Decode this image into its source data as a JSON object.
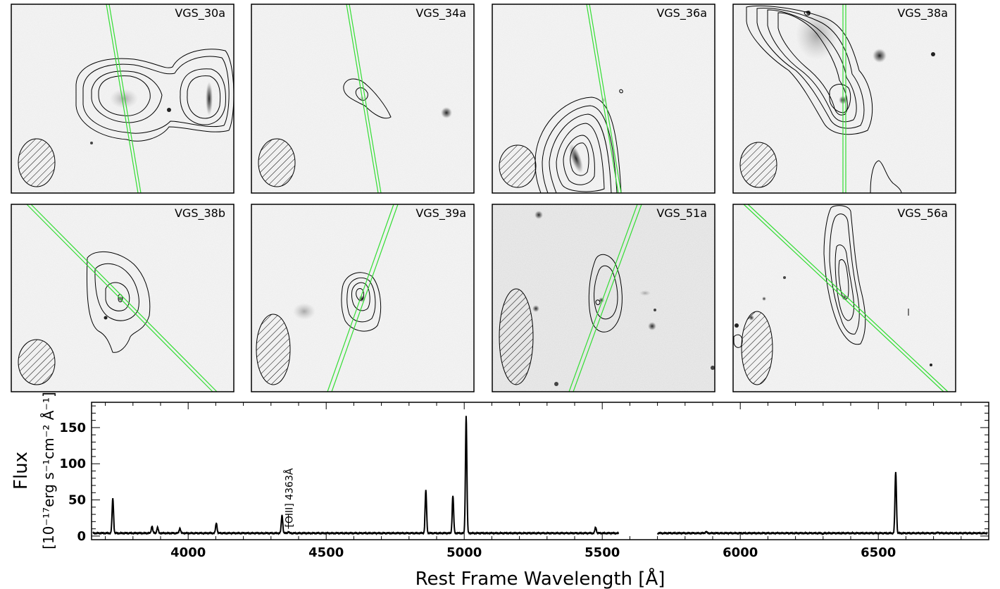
{
  "panels": [
    {
      "label": "VGS_30a"
    },
    {
      "label": "VGS_34a"
    },
    {
      "label": "VGS_36a"
    },
    {
      "label": "VGS_38a"
    },
    {
      "label": "VGS_38b"
    },
    {
      "label": "VGS_39a"
    },
    {
      "label": "VGS_51a"
    },
    {
      "label": "VGS_56a"
    }
  ],
  "colors": {
    "slit": "#33dd33",
    "contour": "#000000",
    "spectrum": "#000000"
  },
  "chart_data": {
    "type": "line",
    "xlabel": "Rest Frame Wavelength [Å]",
    "ylabel_line1": "Flux",
    "ylabel_line2": "[10⁻¹⁷erg s⁻¹cm⁻² Å⁻¹]",
    "xlim": [
      3650,
      6900
    ],
    "ylim": [
      -5,
      185
    ],
    "x_ticks": [
      4000,
      4500,
      5000,
      5500,
      6000,
      6500
    ],
    "y_ticks": [
      0,
      50,
      100,
      150
    ],
    "gap": [
      5560,
      5700
    ],
    "continuum": 4,
    "emission_lines": [
      {
        "x": 3727,
        "y": 52
      },
      {
        "x": 3869,
        "y": 14
      },
      {
        "x": 3889,
        "y": 12
      },
      {
        "x": 3970,
        "y": 11
      },
      {
        "x": 4102,
        "y": 18
      },
      {
        "x": 4340,
        "y": 29
      },
      {
        "x": 4363,
        "y": 6
      },
      {
        "x": 4861,
        "y": 63
      },
      {
        "x": 4959,
        "y": 56
      },
      {
        "x": 5007,
        "y": 167
      },
      {
        "x": 5476,
        "y": 12
      },
      {
        "x": 5876,
        "y": 6
      },
      {
        "x": 6300,
        "y": 3
      },
      {
        "x": 6563,
        "y": 89
      },
      {
        "x": 6717,
        "y": 5
      },
      {
        "x": 6731,
        "y": 4
      }
    ],
    "annotations": [
      {
        "text": "[OIII] 4363Å",
        "x": 4363
      }
    ]
  }
}
